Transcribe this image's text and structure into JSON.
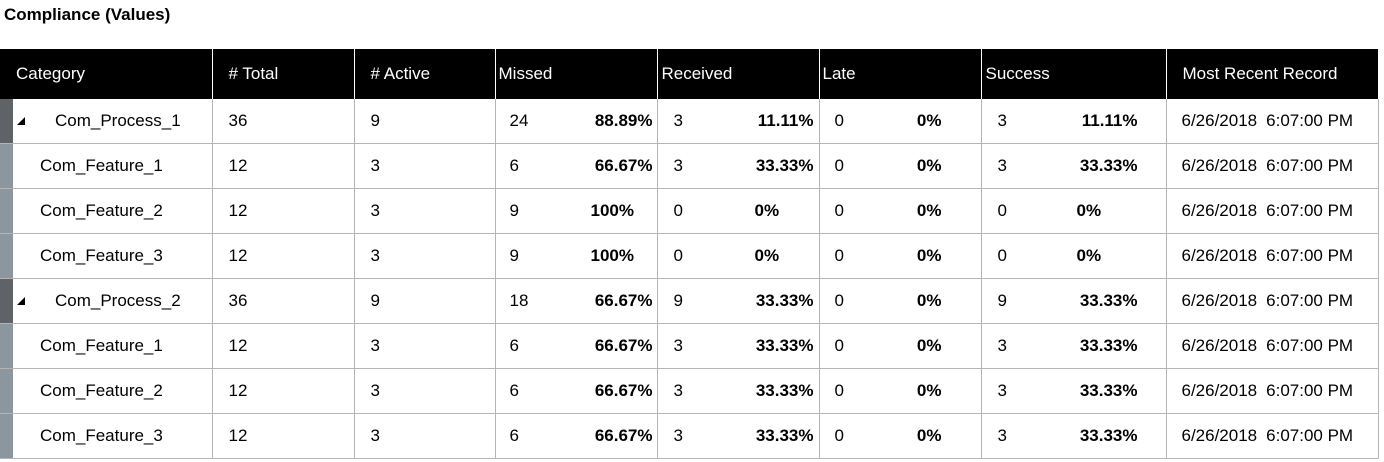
{
  "title": "Compliance (Values)",
  "columns": {
    "category": "Category",
    "total": "# Total",
    "active": "# Active",
    "missed": "Missed",
    "received": "Received",
    "late": "Late",
    "success": "Success",
    "most_recent": "Most Recent Record"
  },
  "rows": [
    {
      "type": "group",
      "name": "Com_Process_1",
      "total": "36",
      "active": "9",
      "missed": "24",
      "missed_pct": "88.89%",
      "received": "3",
      "received_pct": "11.11%",
      "late": "0",
      "late_pct": "0%",
      "success": "3",
      "success_pct": "11.11%",
      "date": "6/26/2018",
      "time": "6:07:00 PM"
    },
    {
      "type": "child",
      "name": "Com_Feature_1",
      "total": "12",
      "active": "3",
      "missed": "6",
      "missed_pct": "66.67%",
      "received": "3",
      "received_pct": "33.33%",
      "late": "0",
      "late_pct": "0%",
      "success": "3",
      "success_pct": "33.33%",
      "date": "6/26/2018",
      "time": "6:07:00 PM"
    },
    {
      "type": "child",
      "name": "Com_Feature_2",
      "total": "12",
      "active": "3",
      "missed": "9",
      "missed_pct": "100%",
      "received": "0",
      "received_pct": "0%",
      "late": "0",
      "late_pct": "0%",
      "success": "0",
      "success_pct": "0%",
      "date": "6/26/2018",
      "time": "6:07:00 PM"
    },
    {
      "type": "child",
      "name": "Com_Feature_3",
      "total": "12",
      "active": "3",
      "missed": "9",
      "missed_pct": "100%",
      "received": "0",
      "received_pct": "0%",
      "late": "0",
      "late_pct": "0%",
      "success": "0",
      "success_pct": "0%",
      "date": "6/26/2018",
      "time": "6:07:00 PM"
    },
    {
      "type": "group",
      "name": "Com_Process_2",
      "total": "36",
      "active": "9",
      "missed": "18",
      "missed_pct": "66.67%",
      "received": "9",
      "received_pct": "33.33%",
      "late": "0",
      "late_pct": "0%",
      "success": "9",
      "success_pct": "33.33%",
      "date": "6/26/2018",
      "time": "6:07:00 PM"
    },
    {
      "type": "child",
      "name": "Com_Feature_1",
      "total": "12",
      "active": "3",
      "missed": "6",
      "missed_pct": "66.67%",
      "received": "3",
      "received_pct": "33.33%",
      "late": "0",
      "late_pct": "0%",
      "success": "3",
      "success_pct": "33.33%",
      "date": "6/26/2018",
      "time": "6:07:00 PM"
    },
    {
      "type": "child",
      "name": "Com_Feature_2",
      "total": "12",
      "active": "3",
      "missed": "6",
      "missed_pct": "66.67%",
      "received": "3",
      "received_pct": "33.33%",
      "late": "0",
      "late_pct": "0%",
      "success": "3",
      "success_pct": "33.33%",
      "date": "6/26/2018",
      "time": "6:07:00 PM"
    },
    {
      "type": "child",
      "name": "Com_Feature_3",
      "total": "12",
      "active": "3",
      "missed": "6",
      "missed_pct": "66.67%",
      "received": "3",
      "received_pct": "33.33%",
      "late": "0",
      "late_pct": "0%",
      "success": "3",
      "success_pct": "33.33%",
      "date": "6/26/2018",
      "time": "6:07:00 PM"
    }
  ]
}
